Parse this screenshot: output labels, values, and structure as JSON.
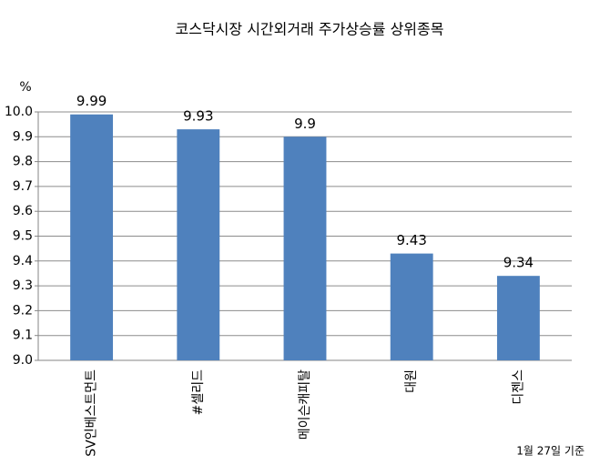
{
  "chart_data": {
    "type": "bar",
    "title": "코스닥시장 시간외거래  주가상승률 상위종목",
    "y_label": "%",
    "note": "1월 27일 기준",
    "categories": [
      "SV인베스트먼트",
      "#셀리드",
      "메이슨캐피탈",
      "대원",
      "디젠스"
    ],
    "values": [
      9.99,
      9.93,
      9.9,
      9.43,
      9.34
    ],
    "color": "#4f81bd",
    "ylim": [
      9.0,
      10.0
    ],
    "yticks": [
      {
        "value": 9,
        "label": "9.0"
      },
      9.1,
      9.2,
      9.3,
      9.4,
      9.5,
      9.6,
      9.7,
      9.8,
      9.9,
      {
        "value": 10,
        "label": "10.0"
      }
    ],
    "grid": true
  }
}
